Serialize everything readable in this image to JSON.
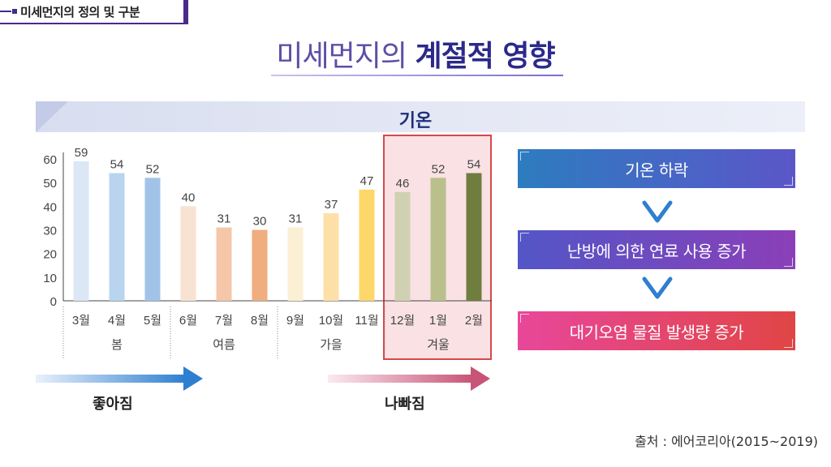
{
  "header": {
    "section_label": "미세먼지의 정의 및 구분"
  },
  "headline": {
    "light": "미세먼지의 ",
    "bold": "계절적 영향"
  },
  "band": {
    "title": "기온"
  },
  "chart_data": {
    "type": "bar",
    "title": "기온",
    "categories": [
      "3월",
      "4월",
      "5월",
      "6월",
      "7월",
      "8월",
      "9월",
      "10월",
      "11월",
      "12월",
      "1월",
      "2월"
    ],
    "values": [
      59,
      54,
      52,
      40,
      31,
      30,
      31,
      37,
      47,
      46,
      52,
      54
    ],
    "colors": [
      "#dbe7f5",
      "#b9d4ef",
      "#a0c3e7",
      "#f8e2d2",
      "#f5c7a8",
      "#f0ad80",
      "#fbefd4",
      "#fde0a8",
      "#fed76a",
      "#d0d1b2",
      "#b9c08b",
      "#6f7d3e"
    ],
    "yticks": [
      0,
      10,
      20,
      30,
      40,
      50,
      60
    ],
    "ylim": [
      0,
      60
    ],
    "seasons": [
      {
        "label": "봄",
        "months": [
          0,
          1,
          2
        ]
      },
      {
        "label": "여름",
        "months": [
          3,
          4,
          5
        ]
      },
      {
        "label": "가을",
        "months": [
          6,
          7,
          8
        ]
      },
      {
        "label": "겨울",
        "months": [
          9,
          10,
          11
        ]
      }
    ]
  },
  "arrows": {
    "good": "좋아짐",
    "bad": "나빠짐"
  },
  "flow": [
    {
      "label": "기온 하락",
      "color_from": "#2d7cc0",
      "color_to": "#5b56c8"
    },
    {
      "label": "난방에 의한 연료 사용 증가",
      "color_from": "#5356c7",
      "color_to": "#8b3fb8"
    },
    {
      "label": "대기오염 물질 발생량 증가",
      "color_from": "#e8479a",
      "color_to": "#e04545"
    }
  ],
  "source": "출처 : 에어코리아(2015~2019)"
}
